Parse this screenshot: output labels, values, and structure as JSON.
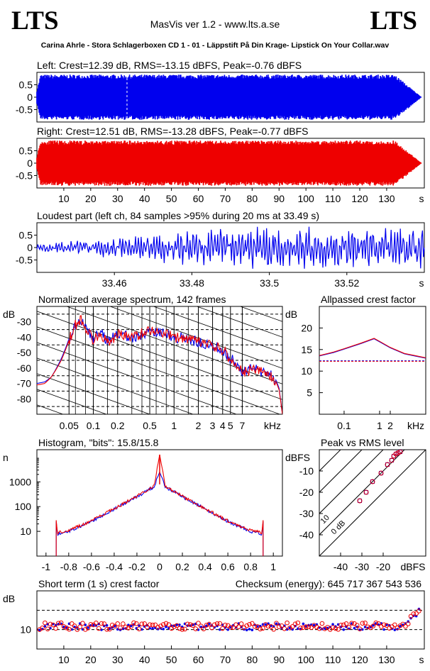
{
  "header": {
    "logo_left": "LTS",
    "logo_right": "LTS",
    "app_title": "MasVis ver 1.2 - www.lts.a.se",
    "filename": "Carina Ahrle - Stora Schlagerboxen CD 1 - 01 - Läppstift På Din Krage- Lipstick On Your Collar.wav"
  },
  "colors": {
    "left": "#0000ee",
    "right": "#ee0000"
  },
  "chart_data": [
    {
      "id": "left",
      "type": "area",
      "title": "Left: Crest=12.39 dB, RMS=-13.15 dBFS, Peak=-0.76 dBFS",
      "color": "#0000ee",
      "xlim": [
        0,
        144
      ],
      "ylim": [
        -1,
        1
      ],
      "yticks": [
        "0.5",
        "0",
        "-0.5"
      ],
      "envelope_peak": 0.91,
      "fade_start_s": 133,
      "end_s": 143
    },
    {
      "id": "right",
      "type": "area",
      "title": "Right: Crest=12.51 dB, RMS=-13.28 dBFS, Peak=-0.77 dBFS",
      "color": "#ee0000",
      "xlim": [
        0,
        144
      ],
      "ylim": [
        -1,
        1
      ],
      "yticks": [
        "0.5",
        "0",
        "-0.5"
      ],
      "xticks": [
        "10",
        "20",
        "30",
        "40",
        "50",
        "60",
        "70",
        "80",
        "90",
        "100",
        "110",
        "120",
        "130"
      ],
      "xunit": "s",
      "envelope_peak": 0.91,
      "fade_start_s": 133,
      "end_s": 143
    },
    {
      "id": "loudest",
      "type": "line",
      "title": "Loudest part (left  ch, 84 samples >95% during 20 ms at 33.49 s)",
      "color": "#0000ee",
      "xlim": [
        33.44,
        33.54
      ],
      "ylim": [
        -1,
        1
      ],
      "yticks": [
        "0.5",
        "0",
        "-0.5"
      ],
      "xticks": [
        "33.46",
        "33.48",
        "33.5",
        "33.52"
      ],
      "xunit": "s"
    },
    {
      "id": "spectrum",
      "type": "line",
      "title": "Normalized average spectrum, 142 frames",
      "ylabel": "dB",
      "yticks": [
        "-30",
        "-40",
        "-50",
        "-60",
        "-70",
        "-80"
      ],
      "xticks": [
        "0.05",
        "0.1",
        "0.2",
        "0.5",
        "1",
        "2",
        "3",
        "4",
        "5",
        "7"
      ],
      "xunit": "kHz",
      "ylim": [
        -90,
        -20
      ],
      "xlim_khz": [
        0.02,
        22
      ],
      "series": [
        {
          "color": "#0000ee",
          "x": [
            0.02,
            0.025,
            0.03,
            0.04,
            0.05,
            0.06,
            0.07,
            0.08,
            0.1,
            0.12,
            0.15,
            0.2,
            0.3,
            0.5,
            1,
            2,
            3,
            4,
            5,
            6,
            7,
            8,
            10,
            12,
            15,
            18,
            20,
            22
          ],
          "y": [
            -70,
            -69,
            -66,
            -54,
            -41,
            -32,
            -29,
            -33,
            -41,
            -36,
            -43,
            -38,
            -40,
            -36,
            -40,
            -43,
            -46,
            -48,
            -54,
            -57,
            -62,
            -61,
            -61,
            -62,
            -64,
            -67,
            -73,
            -90
          ]
        },
        {
          "color": "#ee0000",
          "x": [
            0.02,
            0.025,
            0.03,
            0.04,
            0.05,
            0.06,
            0.07,
            0.08,
            0.1,
            0.12,
            0.15,
            0.2,
            0.3,
            0.5,
            1,
            2,
            3,
            4,
            5,
            6,
            7,
            8,
            10,
            12,
            15,
            18,
            20,
            22
          ],
          "y": [
            -71,
            -70,
            -66,
            -55,
            -42,
            -32,
            -28,
            -34,
            -42,
            -37,
            -44,
            -38,
            -40,
            -35,
            -40,
            -43,
            -46,
            -48,
            -55,
            -58,
            -63,
            -62,
            -61,
            -62,
            -65,
            -68,
            -74,
            -90
          ]
        }
      ]
    },
    {
      "id": "allpass",
      "type": "line",
      "title": "Allpassed crest factor",
      "ylabel": "dB",
      "yticks": [
        "20",
        "15",
        "10",
        "5"
      ],
      "xticks": [
        "0.1",
        "1",
        "2"
      ],
      "xunit": "kHz",
      "ylim": [
        0,
        25
      ],
      "xlim_khz": [
        0.02,
        20
      ],
      "reference_db": 12.4,
      "series": [
        {
          "color": "#0000ee",
          "x": [
            0.02,
            0.05,
            0.1,
            0.3,
            0.7,
            1,
            2,
            5,
            10,
            20
          ],
          "y": [
            13.5,
            14.3,
            15.1,
            16.4,
            17.5,
            16.8,
            15.4,
            14.0,
            13.5,
            13.0
          ]
        },
        {
          "color": "#ee0000",
          "x": [
            0.02,
            0.05,
            0.1,
            0.3,
            0.7,
            1,
            2,
            5,
            10,
            20
          ],
          "y": [
            13.6,
            14.4,
            15.2,
            16.5,
            17.6,
            16.9,
            15.5,
            14.1,
            13.6,
            13.1
          ]
        }
      ]
    },
    {
      "id": "histogram",
      "type": "line",
      "title": "Histogram, \"bits\": 15.8/15.8",
      "ylabel": "n",
      "yticks": [
        "1000",
        "100",
        "10"
      ],
      "xticks": [
        "-1",
        "-0.8",
        "-0.6",
        "-0.4",
        "-0.2",
        "0",
        "0.2",
        "0.4",
        "0.6",
        "0.8",
        "1"
      ],
      "xlim": [
        -1.08,
        1.08
      ],
      "ylim_log10": [
        0,
        4.3
      ],
      "series": [
        {
          "color": "#0000ee",
          "x": [
            -0.91,
            -0.9,
            -0.8,
            -0.6,
            -0.4,
            -0.2,
            -0.05,
            0,
            0.05,
            0.2,
            0.4,
            0.6,
            0.8,
            0.9,
            0.91
          ],
          "y": [
            1.4,
            0.9,
            1.0,
            1.4,
            1.9,
            2.4,
            2.8,
            3.4,
            2.8,
            2.4,
            1.9,
            1.4,
            1.0,
            0.9,
            1.4
          ]
        },
        {
          "color": "#ee0000",
          "x": [
            -0.91,
            -0.9,
            -0.8,
            -0.6,
            -0.4,
            -0.2,
            -0.05,
            0,
            0.05,
            0.2,
            0.4,
            0.6,
            0.8,
            0.9,
            0.91
          ],
          "y": [
            1.45,
            0.95,
            1.05,
            1.42,
            1.92,
            2.42,
            2.82,
            4.1,
            2.82,
            2.42,
            1.92,
            1.42,
            1.05,
            0.95,
            1.45
          ]
        }
      ]
    },
    {
      "id": "peak_rms",
      "type": "scatter",
      "title": "Peak vs RMS level",
      "ylabel": "dBFS",
      "xunit": "dBFS",
      "yticks": [
        "-10",
        "-20",
        "-30",
        "-40"
      ],
      "xticks": [
        "-40",
        "-30",
        "-20"
      ],
      "xlim": [
        -50,
        0
      ],
      "ylim": [
        -50,
        0
      ],
      "crest_lines": [
        "0 dB",
        "10",
        "20",
        "30",
        "40"
      ],
      "series": [
        {
          "color": "#0000ee",
          "x": [
            -31,
            -28,
            -25,
            -21,
            -18,
            -16,
            -15,
            -14,
            -13,
            -12
          ],
          "y": [
            -24,
            -20,
            -15,
            -11,
            -7,
            -5,
            -3,
            -2,
            -1.5,
            -1
          ]
        },
        {
          "color": "#ee0000",
          "x": [
            -31,
            -28,
            -25,
            -21,
            -18,
            -16,
            -15,
            -14,
            -13,
            -12
          ],
          "y": [
            -24,
            -20,
            -15,
            -11,
            -7,
            -5,
            -3,
            -2,
            -1.5,
            -1
          ]
        }
      ]
    },
    {
      "id": "short_crest",
      "type": "scatter",
      "title": "Short term (1 s) crest factor",
      "checksum_label": "Checksum (energy):",
      "checksum_value": "645 717 367 543 536",
      "ylabel": "dB",
      "yticks": [
        "10"
      ],
      "xticks": [
        "10",
        "20",
        "30",
        "40",
        "50",
        "60",
        "70",
        "80",
        "90",
        "100",
        "110",
        "120",
        "130"
      ],
      "xunit": "s",
      "xlim": [
        0,
        144
      ],
      "ylim": [
        0,
        30
      ],
      "dashed_at": [
        10,
        20
      ],
      "series": [
        {
          "color": "#0000ee",
          "mean": 11.5
        },
        {
          "color": "#ee0000",
          "mean": 11.8
        }
      ]
    }
  ]
}
